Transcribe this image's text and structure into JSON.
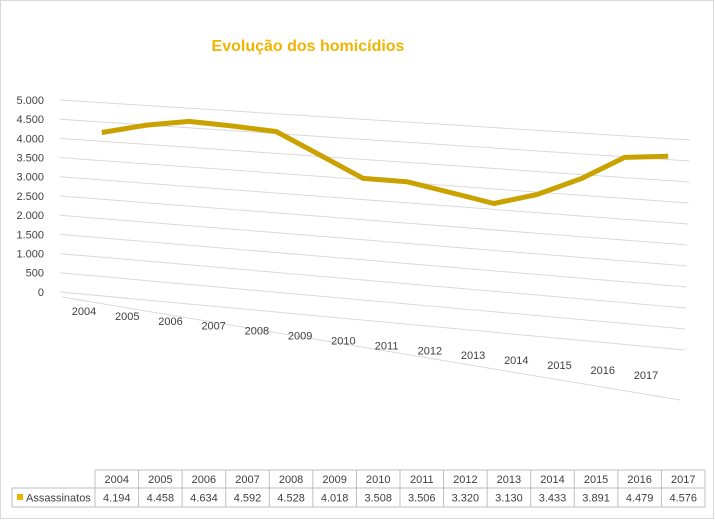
{
  "chart_data": {
    "type": "line",
    "title": "Evolução dos homicídios",
    "categories": [
      "2004",
      "2005",
      "2006",
      "2007",
      "2008",
      "2009",
      "2010",
      "2011",
      "2012",
      "2013",
      "2014",
      "2015",
      "2016",
      "2017"
    ],
    "series": [
      {
        "name": "Assassinatos",
        "color": "#c9a200",
        "values": [
          4194,
          4458,
          4634,
          4592,
          4528,
          4018,
          3508,
          3506,
          3320,
          3130,
          3433,
          3891,
          4479,
          4576
        ],
        "value_labels": [
          "4.194",
          "4.458",
          "4.634",
          "4.592",
          "4.528",
          "4.018",
          "3.508",
          "3.506",
          "3.320",
          "3.130",
          "3.433",
          "3.891",
          "4.479",
          "4.576"
        ]
      }
    ],
    "ylim": [
      0,
      5000
    ],
    "yticks": [
      0,
      500,
      {
        "value": 1000,
        "label": "1.000"
      },
      {
        "value": 1500,
        "label": "1.500"
      },
      {
        "value": 2000,
        "label": "2.000"
      },
      {
        "value": 2500,
        "label": "2.500"
      },
      {
        "value": 3000,
        "label": "3.000"
      },
      {
        "value": 3500,
        "label": "3.500"
      },
      {
        "value": 4000,
        "label": "4.000"
      },
      {
        "value": 4500,
        "label": "4.500"
      },
      {
        "value": 5000,
        "label": "5.000"
      }
    ],
    "grid": true
  }
}
